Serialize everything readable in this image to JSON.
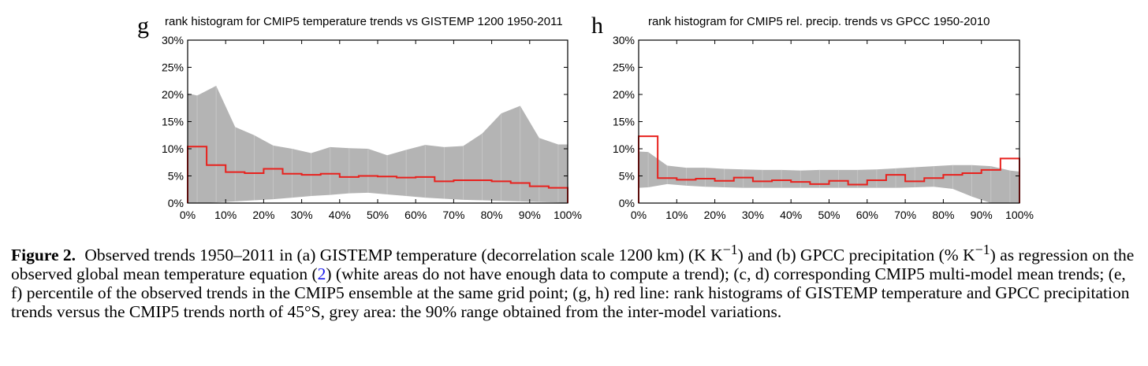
{
  "chart_data": [
    {
      "type": "step",
      "panel_label": "g",
      "title": "rank histogram for CMIP5 temperature trends vs GISTEMP 1200 1950-2011",
      "x_tick_labels": [
        "0%",
        "10%",
        "20%",
        "30%",
        "40%",
        "50%",
        "60%",
        "70%",
        "80%",
        "90%",
        "100%"
      ],
      "y_tick_labels": [
        "0%",
        "5%",
        "10%",
        "15%",
        "20%",
        "25%",
        "30%"
      ],
      "xlim": [
        0,
        100
      ],
      "ylim": [
        0,
        30
      ],
      "grid": false,
      "bins": [
        0,
        5,
        10,
        15,
        20,
        25,
        30,
        35,
        40,
        45,
        50,
        55,
        60,
        65,
        70,
        75,
        80,
        85,
        90,
        95,
        100
      ],
      "observed_red_line": [
        10.4,
        7.0,
        5.7,
        5.5,
        6.3,
        5.4,
        5.2,
        5.4,
        4.8,
        5.0,
        4.9,
        4.7,
        4.8,
        4.0,
        4.2,
        4.2,
        4.0,
        3.7,
        3.1,
        2.8
      ],
      "range_x": [
        0,
        2.5,
        7.5,
        12.5,
        17.5,
        22.5,
        27.5,
        32.5,
        37.5,
        42.5,
        47.5,
        52.5,
        57.5,
        62.5,
        67.5,
        72.5,
        77.5,
        82.5,
        87.5,
        92.5,
        97.5,
        100
      ],
      "range_upper": [
        20.2,
        19.8,
        21.6,
        14.0,
        12.5,
        10.6,
        10.0,
        9.2,
        10.3,
        10.1,
        10.0,
        8.8,
        9.8,
        10.7,
        10.3,
        10.5,
        12.8,
        16.5,
        17.9,
        12.0,
        10.8,
        10.8
      ],
      "range_lower": [
        0.0,
        0.0,
        0.1,
        0.3,
        0.5,
        0.7,
        1.0,
        1.3,
        1.5,
        1.8,
        1.9,
        1.6,
        1.3,
        1.0,
        0.8,
        0.6,
        0.5,
        0.4,
        0.3,
        0.2,
        0.1,
        0.0
      ]
    },
    {
      "type": "step",
      "panel_label": "h",
      "title": "rank histogram for CMIP5 rel. precip. trends vs GPCC 1950-2010",
      "x_tick_labels": [
        "0%",
        "10%",
        "20%",
        "30%",
        "40%",
        "50%",
        "60%",
        "70%",
        "80%",
        "90%",
        "100%"
      ],
      "y_tick_labels": [
        "0%",
        "5%",
        "10%",
        "15%",
        "20%",
        "25%",
        "30%"
      ],
      "xlim": [
        0,
        100
      ],
      "ylim": [
        0,
        30
      ],
      "grid": false,
      "bins": [
        0,
        5,
        10,
        15,
        20,
        25,
        30,
        35,
        40,
        45,
        50,
        55,
        60,
        65,
        70,
        75,
        80,
        85,
        90,
        95,
        100
      ],
      "observed_red_line": [
        12.3,
        4.6,
        4.3,
        4.5,
        4.1,
        4.7,
        4.0,
        4.2,
        3.9,
        3.5,
        4.1,
        3.4,
        4.2,
        5.2,
        4.0,
        4.6,
        5.2,
        5.5,
        6.1,
        8.2
      ],
      "range_x": [
        0,
        2.5,
        7.5,
        12.5,
        17.5,
        22.5,
        27.5,
        32.5,
        37.5,
        42.5,
        47.5,
        52.5,
        57.5,
        62.5,
        67.5,
        72.5,
        77.5,
        82.5,
        87.5,
        92.5,
        97.5,
        100
      ],
      "range_upper": [
        9.5,
        9.4,
        6.9,
        6.5,
        6.5,
        6.3,
        6.2,
        6.1,
        6.1,
        6.0,
        6.1,
        6.1,
        6.1,
        6.2,
        6.4,
        6.6,
        6.8,
        7.0,
        7.0,
        6.8,
        6.0,
        5.8
      ],
      "range_lower": [
        2.8,
        2.9,
        3.5,
        3.2,
        3.0,
        2.9,
        2.8,
        2.8,
        2.8,
        2.8,
        2.8,
        2.8,
        2.8,
        2.8,
        2.8,
        2.9,
        3.0,
        2.6,
        1.2,
        0.0,
        0.0,
        0.0
      ]
    }
  ],
  "colors": {
    "observed_line": "#e8211d",
    "range_fill": "#b4b4b4",
    "range_gridline": "#c9c9c9",
    "axis": "#000000",
    "link": "#1a1aee"
  },
  "caption": {
    "label": "Figure 2.",
    "part1": "Observed trends 1950–2011 in (a) GISTEMP temperature (decorrelation scale 1200 km) (K K",
    "sup1": "−1",
    "part2": ") and (b) GPCC precipitation (% K",
    "sup2": "−1",
    "part3": ") as regression on the observed global mean temperature equation (",
    "ref": "2",
    "part4": ") (white areas do not have enough data to compute a trend); (c, d) corresponding CMIP5 multi-model mean trends; (e, f) percentile of the observed trends in the CMIP5 ensemble at the same grid point; (g, h) red line: rank histograms of GISTEMP temperature and GPCC precipitation trends versus the CMIP5 trends north of 45°S, grey area: the 90% range obtained from the inter-model variations."
  }
}
